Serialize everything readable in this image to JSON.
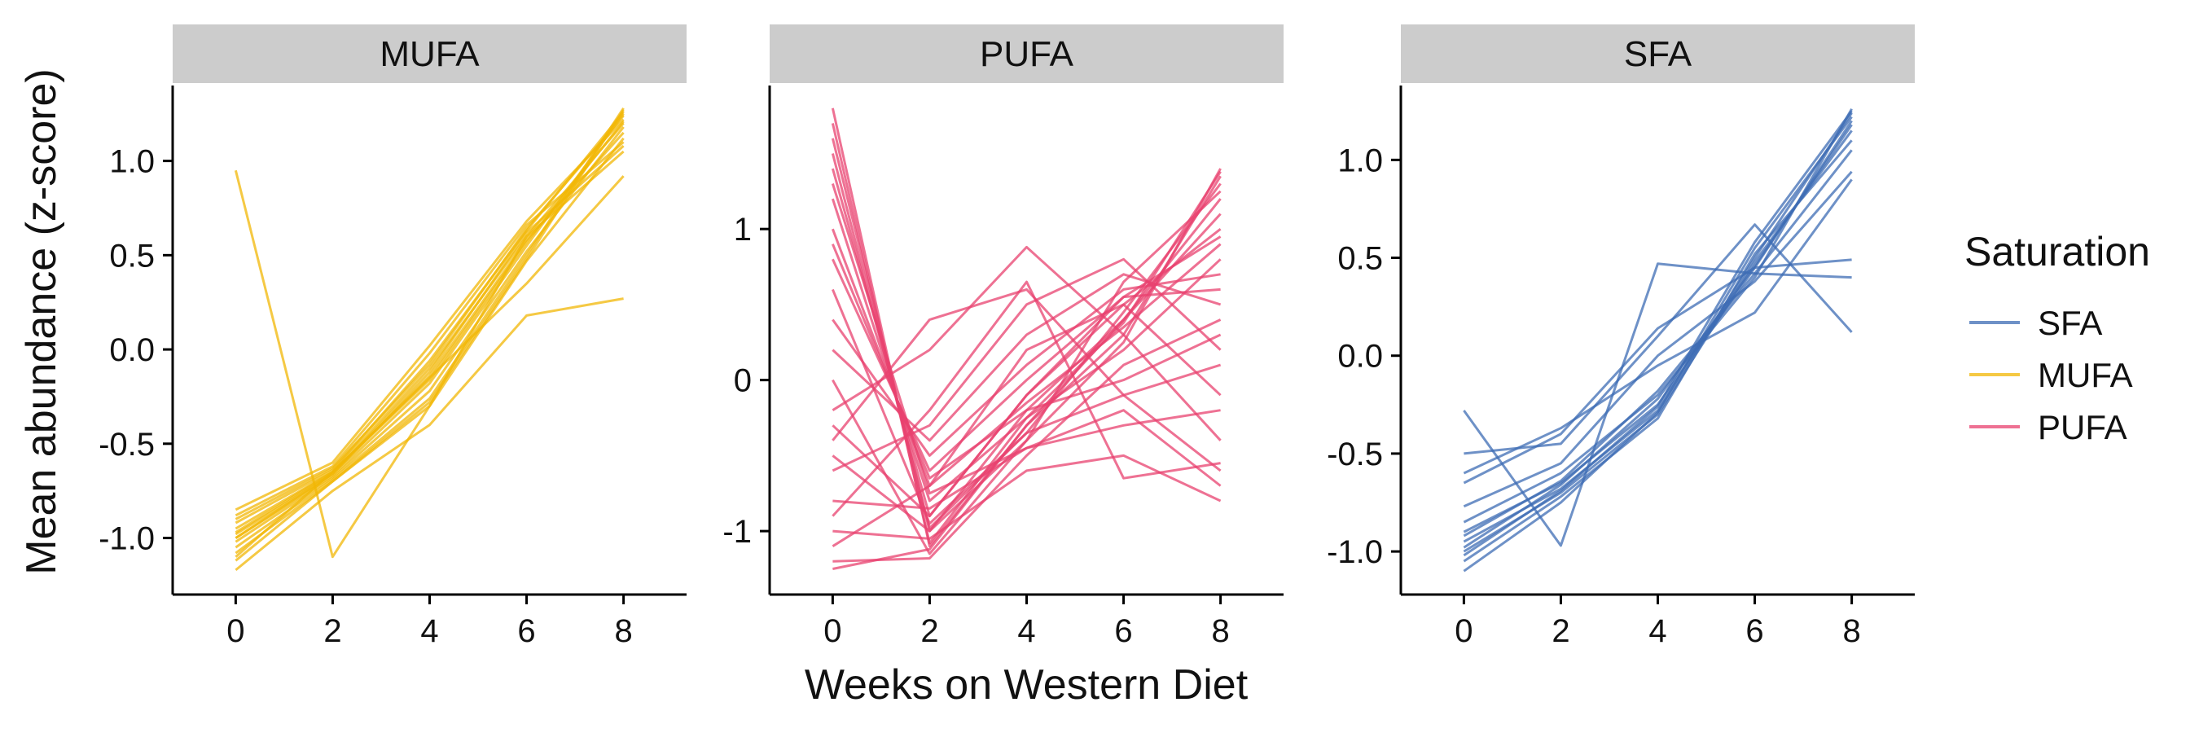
{
  "chart_data": {
    "type": "line",
    "xlabel": "Weeks on Western Diet",
    "ylabel": "Mean abundance (z-score)",
    "x": [
      0,
      2,
      4,
      6,
      8
    ],
    "x_ticks": [
      0,
      2,
      4,
      6,
      8
    ],
    "xlim": [
      -1.3,
      9.3
    ],
    "grid": false,
    "legend": {
      "title": "Saturation",
      "position": "right",
      "entries": [
        {
          "label": "SFA",
          "color": "#3d6cb4"
        },
        {
          "label": "MUFA",
          "color": "#f2b705"
        },
        {
          "label": "PUFA",
          "color": "#e8416f"
        }
      ]
    },
    "panels": [
      {
        "strip": "MUFA",
        "color": "#f2b705",
        "ylim": [
          -1.3,
          1.4
        ],
        "y_ticks": [
          {
            "value": -1.0,
            "label": "-1.0"
          },
          {
            "value": -0.5,
            "label": "-0.5"
          },
          {
            "value": 0.0,
            "label": "0.0"
          },
          {
            "value": 0.5,
            "label": "0.5"
          },
          {
            "value": 1.0,
            "label": "1.0"
          }
        ],
        "series": [
          {
            "values": [
              0.95,
              -1.1,
              -0.3,
              0.6,
              1.05
            ]
          },
          {
            "values": [
              -1.17,
              -0.75,
              -0.4,
              0.18,
              0.27
            ]
          },
          {
            "values": [
              -1.1,
              -0.65,
              -0.15,
              0.35,
              0.92
            ]
          },
          {
            "values": [
              -0.85,
              -0.6,
              0.02,
              0.68,
              1.22
            ]
          },
          {
            "values": [
              -0.88,
              -0.62,
              -0.02,
              0.66,
              1.1
            ]
          },
          {
            "values": [
              -0.92,
              -0.64,
              -0.06,
              0.63,
              1.26
            ]
          },
          {
            "values": [
              -0.95,
              -0.65,
              -0.1,
              0.6,
              1.2
            ]
          },
          {
            "values": [
              -0.98,
              -0.66,
              -0.14,
              0.58,
              1.15
            ]
          },
          {
            "values": [
              -1.0,
              -0.67,
              -0.18,
              0.55,
              1.25
            ]
          },
          {
            "values": [
              -1.02,
              -0.68,
              -0.22,
              0.52,
              1.18
            ]
          },
          {
            "values": [
              -1.05,
              -0.69,
              -0.26,
              0.5,
              1.28
            ]
          },
          {
            "values": [
              -1.08,
              -0.7,
              -0.3,
              0.47,
              1.12
            ]
          },
          {
            "values": [
              -1.0,
              -0.66,
              -0.12,
              0.62,
              1.08
            ]
          },
          {
            "values": [
              -0.9,
              -0.63,
              -0.08,
              0.64,
              1.24
            ]
          },
          {
            "values": [
              -1.12,
              -0.7,
              -0.28,
              0.48,
              1.27
            ]
          },
          {
            "values": [
              -0.97,
              -0.65,
              -0.16,
              0.57,
              1.21
            ]
          }
        ]
      },
      {
        "strip": "PUFA",
        "color": "#e8416f",
        "ylim": [
          -1.42,
          1.95
        ],
        "y_ticks": [
          {
            "value": -1,
            "label": "-1"
          },
          {
            "value": 0,
            "label": "0"
          },
          {
            "value": 1,
            "label": "1"
          }
        ],
        "series": [
          {
            "values": [
              1.8,
              -1.1,
              -0.3,
              0.3,
              1.35
            ]
          },
          {
            "values": [
              1.6,
              -1.0,
              -0.2,
              0.4,
              1.2
            ]
          },
          {
            "values": [
              1.4,
              -0.9,
              -0.1,
              0.5,
              1.0
            ]
          },
          {
            "values": [
              1.2,
              -0.8,
              -0.25,
              0.2,
              0.8
            ]
          },
          {
            "values": [
              1.0,
              -0.7,
              -0.15,
              0.35,
              0.9
            ]
          },
          {
            "values": [
              0.8,
              -0.6,
              0.0,
              0.55,
              0.6
            ]
          },
          {
            "values": [
              0.6,
              -0.95,
              -0.35,
              0.45,
              1.3
            ]
          },
          {
            "values": [
              0.4,
              -0.5,
              0.1,
              0.6,
              0.7
            ]
          },
          {
            "values": [
              0.2,
              -0.4,
              0.3,
              0.7,
              0.5
            ]
          },
          {
            "values": [
              0.0,
              -1.15,
              -0.4,
              0.25,
              1.4
            ]
          },
          {
            "values": [
              -0.2,
              0.2,
              0.88,
              0.3,
              -0.4
            ]
          },
          {
            "values": [
              -0.4,
              0.4,
              0.6,
              -0.1,
              -0.6
            ]
          },
          {
            "values": [
              -0.6,
              -0.3,
              0.5,
              0.8,
              0.2
            ]
          },
          {
            "values": [
              -0.8,
              -0.85,
              -0.45,
              -0.2,
              -0.7
            ]
          },
          {
            "values": [
              -1.0,
              -1.05,
              -0.6,
              -0.5,
              -0.8
            ]
          },
          {
            "values": [
              -1.2,
              -1.18,
              -0.5,
              0.1,
              0.4
            ]
          },
          {
            "values": [
              -1.25,
              -1.12,
              -0.3,
              0.4,
              1.1
            ]
          },
          {
            "values": [
              -0.9,
              -0.2,
              0.65,
              -0.65,
              -0.55
            ]
          },
          {
            "values": [
              -0.5,
              -1.0,
              -0.4,
              0.65,
              1.25
            ]
          },
          {
            "values": [
              1.7,
              -1.08,
              -0.25,
              0.38,
              1.38
            ]
          },
          {
            "values": [
              1.5,
              -0.98,
              -0.35,
              -0.1,
              0.1
            ]
          },
          {
            "values": [
              1.3,
              -0.75,
              -0.45,
              -0.3,
              -0.2
            ]
          },
          {
            "values": [
              0.9,
              -0.65,
              -0.2,
              0.0,
              0.3
            ]
          },
          {
            "values": [
              -1.1,
              -0.7,
              0.2,
              0.5,
              -0.1
            ]
          },
          {
            "values": [
              -0.3,
              -0.9,
              -0.1,
              0.55,
              0.95
            ]
          }
        ]
      },
      {
        "strip": "SFA",
        "color": "#3d6cb4",
        "ylim": [
          -1.22,
          1.38
        ],
        "y_ticks": [
          {
            "value": -1.0,
            "label": "-1.0"
          },
          {
            "value": -0.5,
            "label": "-0.5"
          },
          {
            "value": 0.0,
            "label": "0.0"
          },
          {
            "value": 0.5,
            "label": "0.5"
          },
          {
            "value": 1.0,
            "label": "1.0"
          }
        ],
        "series": [
          {
            "values": [
              -0.28,
              -0.97,
              0.47,
              0.42,
              0.4
            ]
          },
          {
            "values": [
              -0.5,
              -0.45,
              0.1,
              0.67,
              0.12
            ]
          },
          {
            "values": [
              -0.65,
              -0.4,
              0.14,
              0.45,
              0.49
            ]
          },
          {
            "values": [
              -0.77,
              -0.55,
              0.0,
              0.38,
              0.94
            ]
          },
          {
            "values": [
              -0.6,
              -0.37,
              -0.05,
              0.22,
              0.9
            ]
          },
          {
            "values": [
              -0.85,
              -0.6,
              -0.2,
              0.4,
              1.26
            ]
          },
          {
            "values": [
              -0.9,
              -0.65,
              -0.25,
              0.45,
              1.2
            ]
          },
          {
            "values": [
              -0.95,
              -0.68,
              -0.28,
              0.5,
              1.24
            ]
          },
          {
            "values": [
              -1.0,
              -0.7,
              -0.3,
              0.48,
              1.15
            ]
          },
          {
            "values": [
              -1.05,
              -0.72,
              -0.32,
              0.52,
              1.1
            ]
          },
          {
            "values": [
              -1.1,
              -0.75,
              -0.29,
              0.55,
              1.22
            ]
          },
          {
            "values": [
              -0.98,
              -0.66,
              -0.22,
              0.46,
              1.18
            ]
          },
          {
            "values": [
              -0.92,
              -0.64,
              -0.18,
              0.42,
              1.05
            ]
          },
          {
            "values": [
              -1.02,
              -0.69,
              -0.26,
              0.58,
              1.25
            ]
          }
        ]
      }
    ]
  }
}
